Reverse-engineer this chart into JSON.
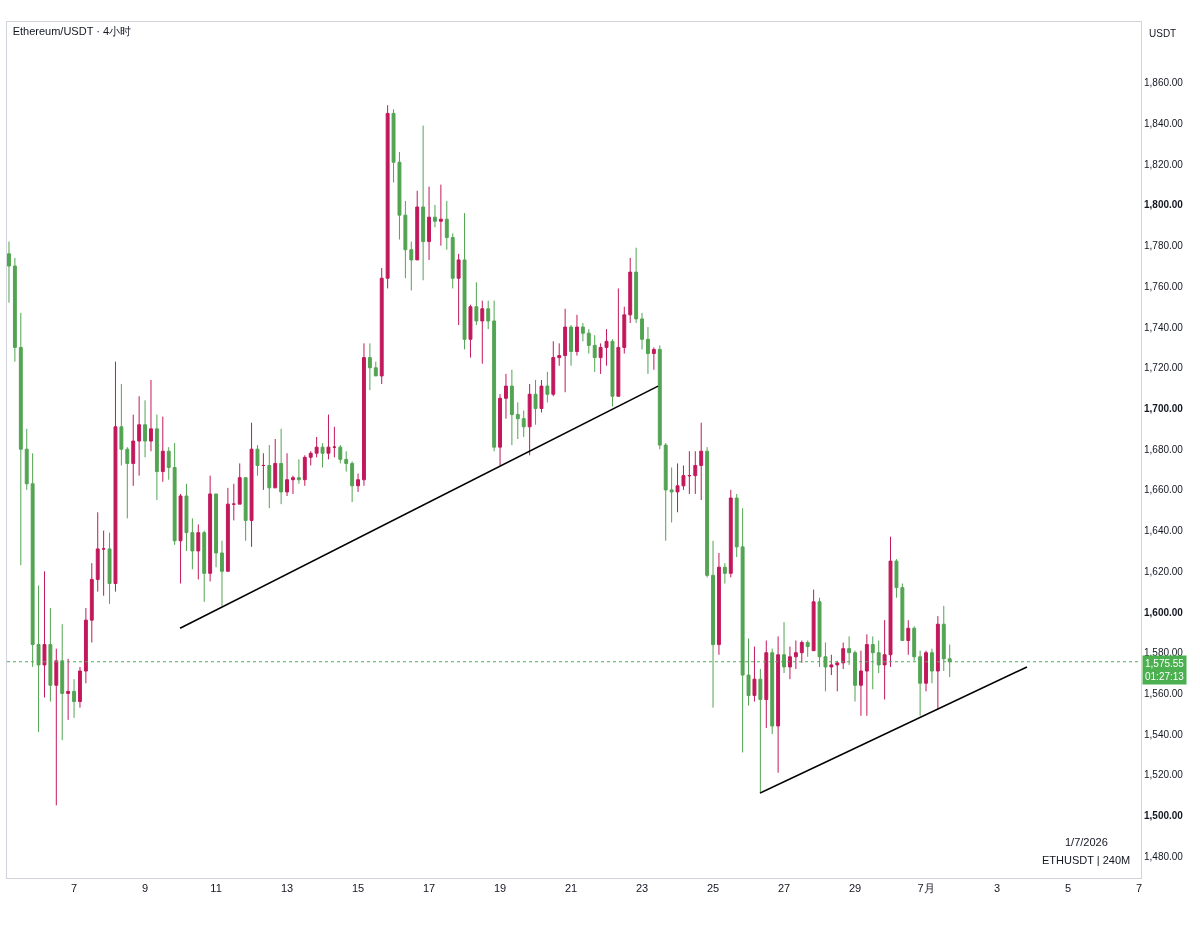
{
  "chart_data": {
    "type": "candlestick",
    "title": "Ethereum/USDT · 4小时",
    "ylabel": "USDT",
    "x": [
      "2026-06-05T04:00",
      "2026-06-05T08:00",
      "2026-06-05T12:00",
      "2026-06-05T16:00",
      "2026-06-05T20:00",
      "2026-06-06T00:00",
      "2026-06-06T04:00",
      "2026-06-06T08:00",
      "2026-06-06T12:00",
      "2026-06-06T16:00",
      "2026-06-06T20:00",
      "2026-06-07T00:00",
      "2026-06-07T04:00",
      "2026-06-07T08:00",
      "2026-06-07T12:00",
      "2026-06-07T16:00",
      "2026-06-07T20:00",
      "2026-06-08T00:00",
      "2026-06-08T04:00",
      "2026-06-08T08:00",
      "2026-06-08T12:00",
      "2026-06-08T16:00",
      "2026-06-08T20:00",
      "2026-06-09T00:00",
      "2026-06-09T04:00",
      "2026-06-09T08:00",
      "2026-06-09T12:00",
      "2026-06-09T16:00",
      "2026-06-09T20:00",
      "2026-06-10T00:00",
      "2026-06-10T04:00",
      "2026-06-10T08:00",
      "2026-06-10T12:00",
      "2026-06-10T16:00",
      "2026-06-10T20:00",
      "2026-06-11T00:00",
      "2026-06-11T04:00",
      "2026-06-11T08:00",
      "2026-06-11T12:00",
      "2026-06-11T16:00",
      "2026-06-11T20:00",
      "2026-06-12T00:00",
      "2026-06-12T04:00",
      "2026-06-12T08:00",
      "2026-06-12T12:00",
      "2026-06-12T16:00",
      "2026-06-12T20:00",
      "2026-06-13T00:00",
      "2026-06-13T04:00",
      "2026-06-13T08:00",
      "2026-06-13T12:00",
      "2026-06-13T16:00",
      "2026-06-13T20:00",
      "2026-06-14T00:00",
      "2026-06-14T04:00",
      "2026-06-14T08:00",
      "2026-06-14T12:00",
      "2026-06-14T16:00",
      "2026-06-14T20:00",
      "2026-06-15T00:00",
      "2026-06-15T04:00",
      "2026-06-15T08:00",
      "2026-06-15T12:00",
      "2026-06-15T16:00",
      "2026-06-15T20:00",
      "2026-06-16T00:00",
      "2026-06-16T04:00",
      "2026-06-16T08:00",
      "2026-06-16T12:00",
      "2026-06-16T16:00",
      "2026-06-16T20:00",
      "2026-06-17T00:00",
      "2026-06-17T04:00",
      "2026-06-17T08:00",
      "2026-06-17T12:00",
      "2026-06-17T16:00",
      "2026-06-17T20:00",
      "2026-06-18T00:00",
      "2026-06-18T04:00",
      "2026-06-18T08:00",
      "2026-06-18T12:00",
      "2026-06-18T16:00",
      "2026-06-18T20:00",
      "2026-06-19T00:00",
      "2026-06-19T04:00",
      "2026-06-19T08:00",
      "2026-06-19T12:00",
      "2026-06-19T16:00",
      "2026-06-19T20:00",
      "2026-06-20T00:00",
      "2026-06-20T04:00",
      "2026-06-20T08:00",
      "2026-06-20T12:00",
      "2026-06-20T16:00",
      "2026-06-20T20:00",
      "2026-06-21T00:00",
      "2026-06-21T04:00",
      "2026-06-21T08:00",
      "2026-06-21T12:00",
      "2026-06-21T16:00",
      "2026-06-21T20:00",
      "2026-06-22T00:00",
      "2026-06-22T04:00",
      "2026-06-22T08:00",
      "2026-06-22T12:00",
      "2026-06-22T16:00",
      "2026-06-22T20:00",
      "2026-06-23T00:00",
      "2026-06-23T04:00",
      "2026-06-23T08:00",
      "2026-06-23T12:00",
      "2026-06-23T16:00",
      "2026-06-23T20:00",
      "2026-06-24T00:00",
      "2026-06-24T04:00",
      "2026-06-24T08:00",
      "2026-06-24T12:00",
      "2026-06-24T16:00",
      "2026-06-24T20:00",
      "2026-06-25T00:00",
      "2026-06-25T04:00",
      "2026-06-25T08:00",
      "2026-06-25T12:00",
      "2026-06-25T16:00",
      "2026-06-25T20:00",
      "2026-06-26T00:00",
      "2026-06-26T04:00",
      "2026-06-26T08:00",
      "2026-06-26T12:00",
      "2026-06-26T16:00",
      "2026-06-26T20:00",
      "2026-06-27T00:00",
      "2026-06-27T04:00",
      "2026-06-27T08:00",
      "2026-06-27T12:00",
      "2026-06-27T16:00",
      "2026-06-27T20:00",
      "2026-06-28T00:00",
      "2026-06-28T04:00",
      "2026-06-28T08:00",
      "2026-06-28T12:00",
      "2026-06-28T16:00",
      "2026-06-28T20:00",
      "2026-06-29T00:00",
      "2026-06-29T04:00",
      "2026-06-29T08:00",
      "2026-06-29T12:00",
      "2026-06-29T16:00",
      "2026-06-29T20:00",
      "2026-06-30T00:00",
      "2026-06-30T04:00",
      "2026-06-30T08:00",
      "2026-06-30T12:00",
      "2026-06-30T16:00",
      "2026-06-30T20:00",
      "2026-07-01T00:00",
      "2026-07-01T04:00",
      "2026-07-01T08:00",
      "2026-07-01T12:00",
      "2026-07-01T16:00"
    ],
    "ohlc": [
      [
        1776,
        1782,
        1752,
        1770
      ],
      [
        1770,
        1774,
        1723,
        1730
      ],
      [
        1730,
        1747,
        1623,
        1680
      ],
      [
        1680,
        1690,
        1660,
        1663
      ],
      [
        1663,
        1678,
        1573,
        1584
      ],
      [
        1584,
        1613,
        1541,
        1574
      ],
      [
        1574,
        1620,
        1558,
        1584
      ],
      [
        1584,
        1602,
        1556,
        1564
      ],
      [
        1564,
        1582,
        1505,
        1576
      ],
      [
        1576,
        1594,
        1537,
        1560
      ],
      [
        1560,
        1577,
        1547,
        1561
      ],
      [
        1561,
        1567,
        1548,
        1556
      ],
      [
        1556,
        1573,
        1553,
        1571
      ],
      [
        1571,
        1602,
        1565,
        1596
      ],
      [
        1596,
        1624,
        1585,
        1616
      ],
      [
        1616,
        1649,
        1610,
        1631
      ],
      [
        1631,
        1640,
        1608,
        1631
      ],
      [
        1631,
        1639,
        1604,
        1614
      ],
      [
        1614,
        1723,
        1610,
        1691
      ],
      [
        1691,
        1712,
        1672,
        1680
      ],
      [
        1680,
        1681,
        1646,
        1673
      ],
      [
        1673,
        1697,
        1662,
        1684
      ],
      [
        1684,
        1706,
        1667,
        1692
      ],
      [
        1692,
        1704,
        1676,
        1684
      ],
      [
        1684,
        1714,
        1679,
        1690
      ],
      [
        1690,
        1697,
        1655,
        1669
      ],
      [
        1669,
        1696,
        1664,
        1679
      ],
      [
        1679,
        1681,
        1665,
        1671
      ],
      [
        1671,
        1683,
        1633,
        1635
      ],
      [
        1635,
        1658,
        1614,
        1657
      ],
      [
        1657,
        1663,
        1630,
        1639
      ],
      [
        1639,
        1646,
        1621,
        1630
      ],
      [
        1630,
        1643,
        1616,
        1639
      ],
      [
        1639,
        1640,
        1605,
        1619
      ],
      [
        1619,
        1667,
        1615,
        1658
      ],
      [
        1658,
        1658,
        1622,
        1629
      ],
      [
        1629,
        1635,
        1603,
        1620
      ],
      [
        1620,
        1661,
        1620,
        1653
      ],
      [
        1653,
        1663,
        1645,
        1653
      ],
      [
        1653,
        1673,
        1653,
        1666
      ],
      [
        1666,
        1666,
        1635,
        1645
      ],
      [
        1645,
        1693,
        1632,
        1680
      ],
      [
        1680,
        1682,
        1667,
        1672
      ],
      [
        1672,
        1678,
        1660,
        1672
      ],
      [
        1672,
        1682,
        1651,
        1661
      ],
      [
        1661,
        1685,
        1661,
        1673
      ],
      [
        1673,
        1690,
        1653,
        1659
      ],
      [
        1659,
        1678,
        1657,
        1665
      ],
      [
        1665,
        1667,
        1658,
        1666
      ],
      [
        1666,
        1675,
        1663,
        1665
      ],
      [
        1665,
        1677,
        1662,
        1676
      ],
      [
        1676,
        1679,
        1672,
        1678
      ],
      [
        1678,
        1686,
        1676,
        1681
      ],
      [
        1681,
        1683,
        1671,
        1678
      ],
      [
        1678,
        1697,
        1675,
        1681
      ],
      [
        1681,
        1691,
        1676,
        1681
      ],
      [
        1681,
        1682,
        1673,
        1675
      ],
      [
        1675,
        1679,
        1669,
        1673
      ],
      [
        1673,
        1674,
        1654,
        1662
      ],
      [
        1662,
        1668,
        1659,
        1665
      ],
      [
        1665,
        1732,
        1662,
        1725
      ],
      [
        1725,
        1732,
        1709,
        1720
      ],
      [
        1720,
        1723,
        1716,
        1716
      ],
      [
        1716,
        1769,
        1712,
        1764
      ],
      [
        1764,
        1849,
        1759,
        1845
      ],
      [
        1845,
        1847,
        1811,
        1821
      ],
      [
        1821,
        1826,
        1783,
        1795
      ],
      [
        1795,
        1802,
        1764,
        1778
      ],
      [
        1778,
        1782,
        1758,
        1773
      ],
      [
        1773,
        1807,
        1773,
        1799
      ],
      [
        1799,
        1839,
        1763,
        1782
      ],
      [
        1782,
        1809,
        1773,
        1794
      ],
      [
        1794,
        1800,
        1789,
        1792
      ],
      [
        1792,
        1810,
        1780,
        1793
      ],
      [
        1793,
        1802,
        1778,
        1784
      ],
      [
        1784,
        1786,
        1759,
        1764
      ],
      [
        1764,
        1776,
        1741,
        1773
      ],
      [
        1773,
        1796,
        1729,
        1734
      ],
      [
        1734,
        1751,
        1725,
        1750
      ],
      [
        1750,
        1762,
        1741,
        1743
      ],
      [
        1743,
        1753,
        1722,
        1749
      ],
      [
        1749,
        1753,
        1739,
        1743
      ],
      [
        1743,
        1753,
        1679,
        1681
      ],
      [
        1681,
        1707,
        1672,
        1705
      ],
      [
        1705,
        1717,
        1695,
        1711
      ],
      [
        1711,
        1719,
        1682,
        1697
      ],
      [
        1697,
        1703,
        1685,
        1695
      ],
      [
        1695,
        1699,
        1686,
        1691
      ],
      [
        1691,
        1712,
        1677,
        1707
      ],
      [
        1707,
        1714,
        1692,
        1700
      ],
      [
        1700,
        1714,
        1698,
        1711
      ],
      [
        1711,
        1718,
        1703,
        1707
      ],
      [
        1707,
        1733,
        1706,
        1725
      ],
      [
        1725,
        1732,
        1721,
        1726
      ],
      [
        1726,
        1749,
        1708,
        1740
      ],
      [
        1740,
        1741,
        1721,
        1728
      ],
      [
        1728,
        1746,
        1726,
        1740
      ],
      [
        1740,
        1742,
        1733,
        1737
      ],
      [
        1737,
        1739,
        1727,
        1731
      ],
      [
        1731,
        1736,
        1718,
        1725
      ],
      [
        1725,
        1732,
        1717,
        1730
      ],
      [
        1730,
        1739,
        1721,
        1733
      ],
      [
        1733,
        1734,
        1701,
        1706
      ],
      [
        1706,
        1759,
        1706,
        1730
      ],
      [
        1730,
        1750,
        1727,
        1746
      ],
      [
        1746,
        1774,
        1742,
        1767
      ],
      [
        1767,
        1779,
        1742,
        1744
      ],
      [
        1744,
        1747,
        1729,
        1734
      ],
      [
        1734,
        1740,
        1717,
        1727
      ],
      [
        1727,
        1730,
        1719,
        1729
      ],
      [
        1729,
        1731,
        1680,
        1682
      ],
      [
        1682,
        1683,
        1635,
        1660
      ],
      [
        1660,
        1671,
        1644,
        1659
      ],
      [
        1659,
        1673,
        1649,
        1662
      ],
      [
        1662,
        1672,
        1660,
        1667
      ],
      [
        1667,
        1679,
        1658,
        1667
      ],
      [
        1667,
        1679,
        1658,
        1672
      ],
      [
        1672,
        1693,
        1655,
        1679
      ],
      [
        1679,
        1681,
        1617,
        1618
      ],
      [
        1618,
        1635,
        1553,
        1584
      ],
      [
        1584,
        1629,
        1579,
        1622
      ],
      [
        1622,
        1624,
        1614,
        1619
      ],
      [
        1619,
        1660,
        1617,
        1656
      ],
      [
        1656,
        1658,
        1627,
        1632
      ],
      [
        1632,
        1651,
        1531,
        1569
      ],
      [
        1569,
        1587,
        1554,
        1559
      ],
      [
        1559,
        1583,
        1556,
        1567
      ],
      [
        1567,
        1572,
        1511,
        1557
      ],
      [
        1557,
        1586,
        1543,
        1580
      ],
      [
        1580,
        1582,
        1540,
        1544
      ],
      [
        1544,
        1588,
        1521,
        1579
      ],
      [
        1579,
        1595,
        1570,
        1573
      ],
      [
        1573,
        1583,
        1567,
        1578
      ],
      [
        1578,
        1586,
        1572,
        1580
      ],
      [
        1580,
        1586,
        1575,
        1585
      ],
      [
        1585,
        1586,
        1578,
        1583
      ],
      [
        1581,
        1611,
        1581,
        1605
      ],
      [
        1605,
        1607,
        1573,
        1578
      ],
      [
        1578,
        1585,
        1561,
        1573
      ],
      [
        1573,
        1579,
        1569,
        1574
      ],
      [
        1574,
        1576,
        1561,
        1575
      ],
      [
        1575,
        1585,
        1572,
        1582
      ],
      [
        1582,
        1588,
        1574,
        1580
      ],
      [
        1580,
        1581,
        1556,
        1564
      ],
      [
        1564,
        1581,
        1549,
        1571
      ],
      [
        1571,
        1589,
        1549,
        1584
      ],
      [
        1584,
        1588,
        1562,
        1580
      ],
      [
        1580,
        1586,
        1570,
        1574
      ],
      [
        1574,
        1596,
        1557,
        1579
      ],
      [
        1579,
        1637,
        1573,
        1625
      ],
      [
        1625,
        1626,
        1607,
        1612
      ],
      [
        1612,
        1614,
        1586,
        1586
      ],
      [
        1586,
        1596,
        1579,
        1592
      ],
      [
        1592,
        1593,
        1576,
        1578
      ],
      [
        1578,
        1581,
        1549,
        1565
      ],
      [
        1565,
        1581,
        1561,
        1580
      ],
      [
        1580,
        1582,
        1565,
        1571
      ],
      [
        1571,
        1598,
        1552,
        1594
      ],
      [
        1594,
        1603,
        1571,
        1577
      ],
      [
        1577,
        1584,
        1568,
        1575.55
      ]
    ],
    "colors": [
      "#52a452",
      "#52a452",
      "#52a452",
      "#52a452",
      "#52a452",
      "#52a452",
      "#c2185b",
      "#52a452",
      "#c2185b",
      "#52a452",
      "#c2185b",
      "#52a452",
      "#c2185b",
      "#c2185b",
      "#c2185b",
      "#c2185b",
      "#c2185b",
      "#52a452",
      "#c2185b",
      "#52a452",
      "#52a452",
      "#c2185b",
      "#c2185b",
      "#52a452",
      "#c2185b",
      "#52a452",
      "#c2185b",
      "#52a452",
      "#52a452",
      "#c2185b",
      "#52a452",
      "#52a452",
      "#c2185b",
      "#52a452",
      "#c2185b",
      "#52a452",
      "#52a452",
      "#c2185b",
      "#c2185b",
      "#c2185b",
      "#52a452",
      "#c2185b",
      "#52a452",
      "#c2185b",
      "#52a452",
      "#c2185b",
      "#52a452",
      "#c2185b",
      "#c2185b",
      "#52a452",
      "#c2185b",
      "#c2185b",
      "#c2185b",
      "#52a452",
      "#c2185b",
      "#c2185b",
      "#52a452",
      "#52a452",
      "#52a452",
      "#c2185b",
      "#c2185b",
      "#52a452",
      "#52a452",
      "#c2185b",
      "#c2185b",
      "#52a452",
      "#52a452",
      "#52a452",
      "#52a452",
      "#c2185b",
      "#52a452",
      "#c2185b",
      "#52a452",
      "#c2185b",
      "#52a452",
      "#52a452",
      "#c2185b",
      "#52a452",
      "#c2185b",
      "#52a452",
      "#c2185b",
      "#52a452",
      "#52a452",
      "#c2185b",
      "#c2185b",
      "#52a452",
      "#52a452",
      "#52a452",
      "#c2185b",
      "#52a452",
      "#c2185b",
      "#52a452",
      "#c2185b",
      "#c2185b",
      "#c2185b",
      "#52a452",
      "#c2185b",
      "#52a452",
      "#52a452",
      "#52a452",
      "#c2185b",
      "#c2185b",
      "#52a452",
      "#c2185b",
      "#c2185b",
      "#c2185b",
      "#52a452",
      "#52a452",
      "#52a452",
      "#c2185b",
      "#52a452",
      "#52a452",
      "#52a452",
      "#c2185b",
      "#c2185b",
      "#c2185b",
      "#c2185b",
      "#c2185b",
      "#52a452",
      "#52a452",
      "#c2185b",
      "#52a452",
      "#c2185b",
      "#52a452",
      "#52a452",
      "#52a452",
      "#c2185b",
      "#52a452",
      "#c2185b",
      "#52a452",
      "#c2185b",
      "#52a452",
      "#c2185b",
      "#c2185b",
      "#c2185b",
      "#52a452",
      "#c2185b",
      "#52a452",
      "#52a452",
      "#c2185b",
      "#c2185b",
      "#c2185b",
      "#52a452",
      "#52a452",
      "#c2185b",
      "#c2185b",
      "#52a452",
      "#52a452",
      "#c2185b",
      "#c2185b",
      "#52a452",
      "#52a452",
      "#c2185b",
      "#52a452",
      "#52a452",
      "#c2185b",
      "#52a452",
      "#c2185b",
      "#52a452",
      "#52a452"
    ],
    "series": [
      {
        "type": "line",
        "x": [
          "2026-06-09T23:40",
          "2026-06-23T10:50"
        ],
        "values": [
          1592,
          1711
        ],
        "color": "#000000"
      },
      {
        "type": "line",
        "x": [
          "2026-06-26T07:45",
          "2026-07-03T20:15"
        ],
        "values": [
          1511,
          1573
        ],
        "color": "#000000"
      }
    ],
    "xlim": [
      "2026-06-05T02:40",
      "2026-07-07T01:20"
    ],
    "xticks": [
      {
        "value": "2026-06-07",
        "label": "7"
      },
      {
        "value": "2026-06-09",
        "label": "9"
      },
      {
        "value": "2026-06-11",
        "label": "11"
      },
      {
        "value": "2026-06-13",
        "label": "13"
      },
      {
        "value": "2026-06-15",
        "label": "15"
      },
      {
        "value": "2026-06-17",
        "label": "17"
      },
      {
        "value": "2026-06-19",
        "label": "19"
      },
      {
        "value": "2026-06-21",
        "label": "21"
      },
      {
        "value": "2026-06-23",
        "label": "23"
      },
      {
        "value": "2026-06-25",
        "label": "25"
      },
      {
        "value": "2026-06-27",
        "label": "27"
      },
      {
        "value": "2026-06-29",
        "label": "29"
      },
      {
        "value": "2026-07-01",
        "label": "7月"
      },
      {
        "value": "2026-07-03",
        "label": "3"
      },
      {
        "value": "2026-07-05",
        "label": "5"
      },
      {
        "value": "2026-07-07",
        "label": "7"
      }
    ],
    "ylim": [
      1469.3,
      1889.9
    ],
    "yticks": [
      {
        "value": 1480,
        "label": "1,480.00"
      },
      {
        "value": 1500,
        "label": "1,500.00"
      },
      {
        "value": 1520,
        "label": "1,520.00"
      },
      {
        "value": 1540,
        "label": "1,540.00"
      },
      {
        "value": 1560,
        "label": "1,560.00"
      },
      {
        "value": 1580,
        "label": "1,580.00"
      },
      {
        "value": 1600,
        "label": "1,600.00"
      },
      {
        "value": 1620,
        "label": "1,620.00"
      },
      {
        "value": 1640,
        "label": "1,640.00"
      },
      {
        "value": 1660,
        "label": "1,660.00"
      },
      {
        "value": 1680,
        "label": "1,680.00"
      },
      {
        "value": 1700,
        "label": "1,700.00"
      },
      {
        "value": 1720,
        "label": "1,720.00"
      },
      {
        "value": 1740,
        "label": "1,740.00"
      },
      {
        "value": 1760,
        "label": "1,760.00"
      },
      {
        "value": 1780,
        "label": "1,780.00"
      },
      {
        "value": 1800,
        "label": "1,800.00"
      },
      {
        "value": 1820,
        "label": "1,820.00"
      },
      {
        "value": 1840,
        "label": "1,840.00"
      },
      {
        "value": 1860,
        "label": "1,860.00"
      }
    ],
    "ref_lines": [
      {
        "axis": "y",
        "value": 1575.55,
        "label": "1,575.55\n01:27:13",
        "color": "#4caf50",
        "line_style": "dotted"
      }
    ],
    "annotations": [
      "1/7/2026",
      "ETHUSDT | 240M"
    ]
  }
}
